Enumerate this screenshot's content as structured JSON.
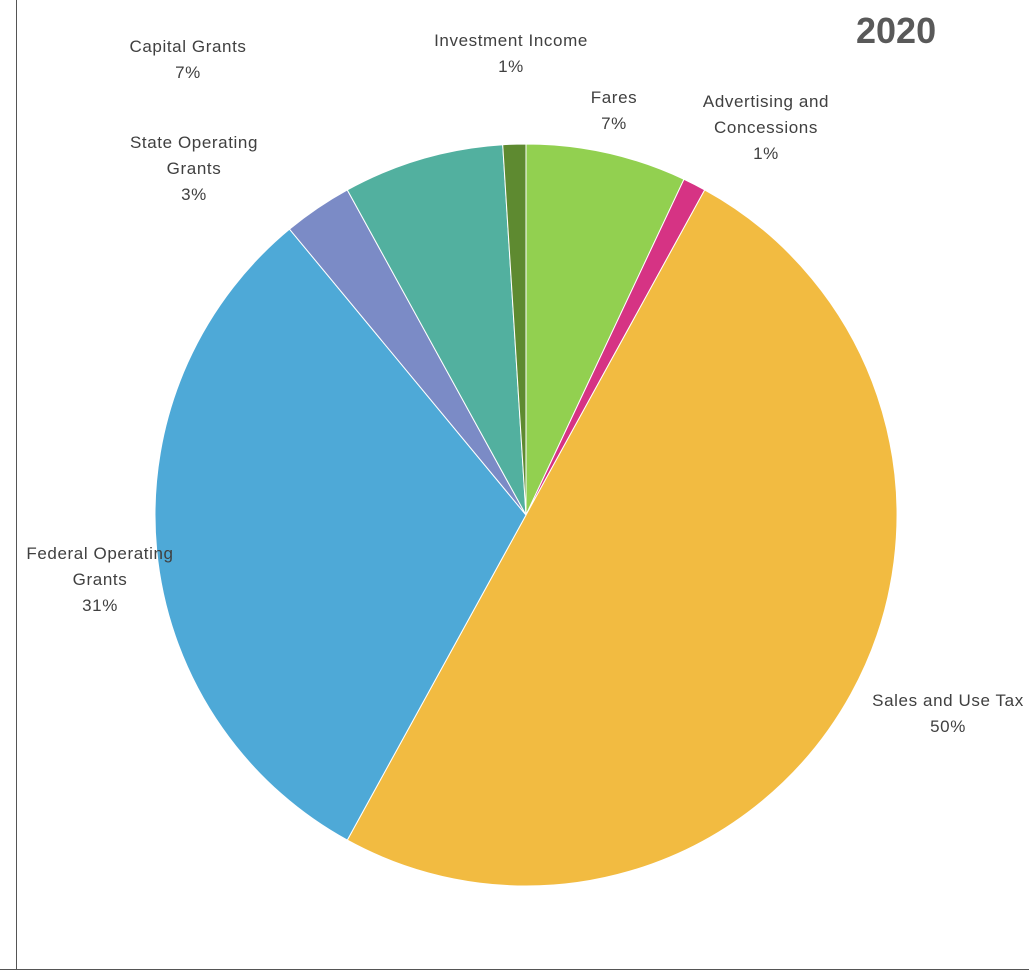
{
  "chart_data": {
    "type": "pie",
    "title": "2020",
    "slices": [
      {
        "label_lines": [
          "Fares"
        ],
        "value": 7,
        "value_label": "7%",
        "color": "#92d050"
      },
      {
        "label_lines": [
          "Advertising and",
          "Concessions"
        ],
        "value": 1,
        "value_label": "1%",
        "color": "#d63384"
      },
      {
        "label_lines": [
          "Sales and Use Tax"
        ],
        "value": 50,
        "value_label": "50%",
        "color": "#f2bb41"
      },
      {
        "label_lines": [
          "Federal Operating",
          "Grants"
        ],
        "value": 31,
        "value_label": "31%",
        "color": "#4ea9d7"
      },
      {
        "label_lines": [
          "State Operating",
          "Grants"
        ],
        "value": 3,
        "value_label": "3%",
        "color": "#7b8bc6"
      },
      {
        "label_lines": [
          "Capital Grants"
        ],
        "value": 7,
        "value_label": "7%",
        "color": "#52b09f"
      },
      {
        "label_lines": [
          "Investment Income"
        ],
        "value": 1,
        "value_label": "1%",
        "color": "#5e8a30"
      }
    ],
    "start_angle_deg": 0,
    "direction": "clockwise",
    "legend": "none"
  }
}
